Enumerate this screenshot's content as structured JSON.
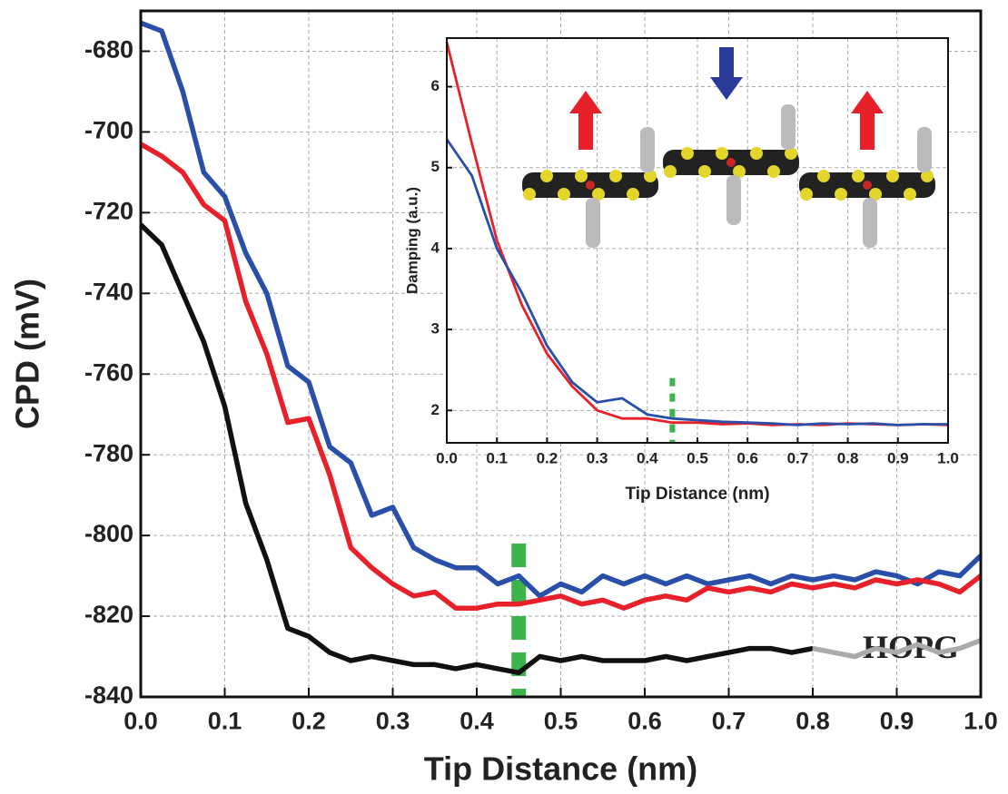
{
  "chart_data": [
    {
      "type": "line",
      "xlabel": "Tip Distance (nm)",
      "ylabel": "CPD (mV)",
      "x": [
        0,
        0.025,
        0.05,
        0.075,
        0.1,
        0.125,
        0.15,
        0.175,
        0.2,
        0.225,
        0.25,
        0.275,
        0.3,
        0.325,
        0.35,
        0.375,
        0.4,
        0.425,
        0.45,
        0.475,
        0.5,
        0.525,
        0.55,
        0.575,
        0.6,
        0.625,
        0.65,
        0.675,
        0.7,
        0.725,
        0.75,
        0.775,
        0.8,
        0.825,
        0.85,
        0.875,
        0.9,
        0.925,
        0.95,
        0.975,
        1.0
      ],
      "series": [
        {
          "color": "#2a4fa8",
          "values": [
            -673,
            -675,
            -690,
            -710,
            -716,
            -730,
            -740,
            -758,
            -762,
            -778,
            -782,
            -795,
            -793,
            -803,
            -806,
            -808,
            -808,
            -812,
            -810,
            -815,
            -812,
            -814,
            -810,
            -812,
            -810,
            -812,
            -810,
            -812,
            -811,
            -810,
            -812,
            -810,
            -811,
            -810,
            -811,
            -809,
            -810,
            -812,
            -809,
            -810,
            -805
          ]
        },
        {
          "color": "#e8202a",
          "values": [
            -703,
            -706,
            -710,
            -718,
            -722,
            -742,
            -755,
            -772,
            -771,
            -785,
            -803,
            -808,
            -812,
            -815,
            -814,
            -818,
            -818,
            -817,
            -817,
            -816,
            -815,
            -817,
            -816,
            -818,
            -816,
            -815,
            -816,
            -813,
            -814,
            -813,
            -814,
            -812,
            -813,
            -812,
            -813,
            -811,
            -812,
            -811,
            -812,
            -814,
            -810
          ]
        },
        {
          "name": "HOPG",
          "color": "#111111",
          "values": [
            -723,
            -728,
            -740,
            -752,
            -768,
            -792,
            -806,
            -823,
            -825,
            -829,
            -831,
            -830,
            -831,
            -832,
            -832,
            -833,
            -832,
            -833,
            -834,
            -830,
            -831,
            -830,
            -831,
            -831,
            -831,
            -830,
            -831,
            -830,
            -829,
            -828,
            -828,
            -829,
            -828,
            null,
            null,
            null,
            null,
            null,
            null,
            null,
            null
          ]
        },
        {
          "color": "#aaaaaa",
          "values": [
            null,
            null,
            null,
            null,
            null,
            null,
            null,
            null,
            null,
            null,
            null,
            null,
            null,
            null,
            null,
            null,
            null,
            null,
            null,
            null,
            null,
            null,
            null,
            null,
            null,
            null,
            null,
            null,
            null,
            null,
            null,
            null,
            -828,
            -829,
            -830,
            -828,
            -829,
            -827,
            -829,
            -828,
            -826
          ]
        }
      ],
      "xlim": [
        0,
        1.0
      ],
      "ylim": [
        -840,
        -670
      ],
      "xticks": [
        {
          "value": 0,
          "label": "0.0"
        },
        0.1,
        0.2,
        0.3,
        0.4,
        0.5,
        0.6,
        0.7,
        0.8,
        0.9,
        {
          "value": 1.0,
          "label": "1.0"
        }
      ],
      "yticks": [
        -840,
        -820,
        -800,
        -780,
        -760,
        -740,
        -720,
        -700,
        -680
      ],
      "grid": true,
      "vline_x": 0.45,
      "vline_color": "#3cb44b"
    },
    {
      "type": "line",
      "xlabel": "Tip Distance (nm)",
      "ylabel": "Damping (a.u.)",
      "x": [
        0,
        0.05,
        0.1,
        0.15,
        0.2,
        0.25,
        0.3,
        0.35,
        0.4,
        0.45,
        0.5,
        0.55,
        0.6,
        0.65,
        0.7,
        0.75,
        0.8,
        0.85,
        0.9,
        0.95,
        1.0
      ],
      "series": [
        {
          "color": "#e8202a",
          "values": [
            6.55,
            5.3,
            4.1,
            3.3,
            2.7,
            2.3,
            2.0,
            1.9,
            1.9,
            1.85,
            1.85,
            1.83,
            1.84,
            1.82,
            1.83,
            1.82,
            1.84,
            1.83,
            1.82,
            1.83,
            1.82
          ]
        },
        {
          "color": "#2a4fa8",
          "values": [
            5.35,
            4.9,
            4.0,
            3.45,
            2.8,
            2.35,
            2.1,
            2.15,
            1.95,
            1.9,
            1.88,
            1.86,
            1.85,
            1.84,
            1.82,
            1.84,
            1.83,
            1.84,
            1.82,
            1.83,
            1.83
          ]
        }
      ],
      "xlim": [
        0,
        1.0
      ],
      "ylim": [
        1.6,
        6.6
      ],
      "xticks": [
        {
          "value": 0,
          "label": "0.0"
        },
        0.1,
        0.2,
        0.3,
        0.4,
        0.5,
        0.6,
        0.7,
        0.8,
        0.9,
        {
          "value": 1.0,
          "label": "1.0"
        }
      ],
      "yticks": [
        2,
        3,
        4,
        5,
        6
      ],
      "grid": true,
      "vline_x": 0.45,
      "vline_color": "#3cb44b"
    }
  ]
}
